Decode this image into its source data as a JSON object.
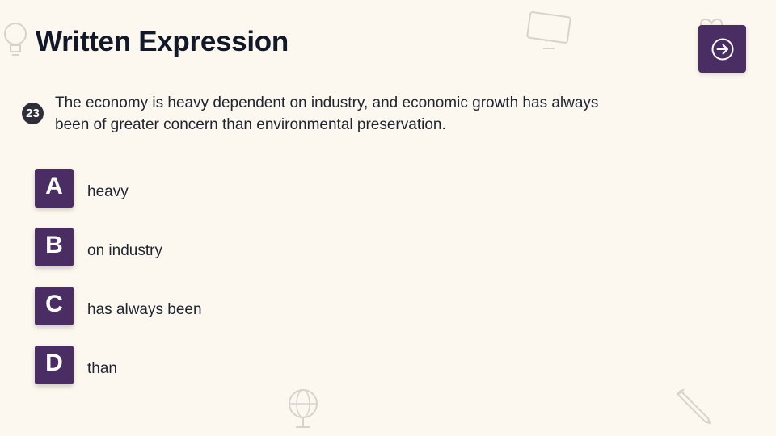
{
  "header": {
    "title": "Written Expression"
  },
  "navigation": {
    "next_icon": "arrow-right-circle-icon"
  },
  "question": {
    "number": "23",
    "text_line1": "The economy is heavy dependent on industry, and economic growth has always",
    "text_line2": "been of greater concern than environmental preservation."
  },
  "options": [
    {
      "letter": "A",
      "text": "heavy"
    },
    {
      "letter": "B",
      "text": "on industry"
    },
    {
      "letter": "C",
      "text": "has always been"
    },
    {
      "letter": "D",
      "text": "than"
    }
  ],
  "colors": {
    "accent": "#4a2e63",
    "background": "#fcf8ef",
    "badge": "#2f2f3a"
  },
  "decorations": [
    "lightbulb-icon",
    "monitor-icon",
    "heart-icon",
    "globe-icon",
    "pencil-icon"
  ]
}
